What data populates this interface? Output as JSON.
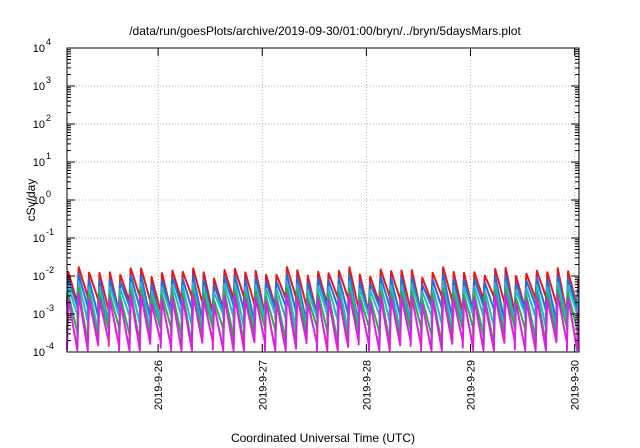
{
  "chart_data": {
    "type": "line",
    "title": "/data/run/goesPlots/archive/2019-09-30/01:00/bryn/../bryn/5daysMars.plot",
    "xlabel": "Coordinated Universal Time (UTC)",
    "ylabel": "cSv/day",
    "yscale": "log",
    "ylim": [
      0.0001,
      10000
    ],
    "y_ticks": [
      {
        "base": "10",
        "exp": "-4"
      },
      {
        "base": "10",
        "exp": "-3"
      },
      {
        "base": "10",
        "exp": "-2"
      },
      {
        "base": "10",
        "exp": "-1"
      },
      {
        "base": "10",
        "exp": "0"
      },
      {
        "base": "10",
        "exp": "1"
      },
      {
        "base": "10",
        "exp": "2"
      },
      {
        "base": "10",
        "exp": "3"
      },
      {
        "base": "10",
        "exp": "4"
      }
    ],
    "xlim": [
      "2019-09-25 03:00",
      "2019-09-30 01:00"
    ],
    "x_ticks": [
      "2019-9-26",
      "2019-9-27",
      "2019-9-28",
      "2019-9-29",
      "2019-9-30"
    ],
    "x_tick_dates": [
      "2019-09-26",
      "2019-09-27",
      "2019-09-28",
      "2019-09-29",
      "2019-09-30"
    ],
    "grid": true,
    "sawtooth_period_hours": 2.4,
    "series": [
      {
        "color": "#e8141e",
        "peak": 0.013,
        "trough": 0.0019
      },
      {
        "color": "#1f6fe0",
        "peak": 0.0085,
        "trough": 0.0011
      },
      {
        "color": "#23b8c8",
        "peak": 0.0055,
        "trough": 0.00065
      },
      {
        "color": "#22b14c",
        "peak": 0.0035,
        "trough": 0.0003
      },
      {
        "color": "#e01ee0",
        "peak": 0.0026,
        "trough": 0.00013
      }
    ]
  }
}
